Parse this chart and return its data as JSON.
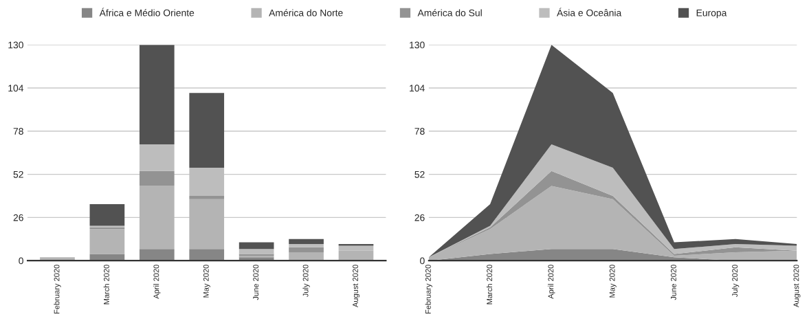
{
  "chart_data": [
    {
      "type": "bar",
      "stacked": true,
      "categories": [
        "February 2020",
        "March 2020",
        "April 2020",
        "May 2020",
        "June 2020",
        "July 2020",
        "August 2020"
      ],
      "ylim": [
        0,
        130
      ],
      "yticks": [
        0,
        26,
        52,
        78,
        104,
        130
      ],
      "grid": "y",
      "legend": "top",
      "series": [
        {
          "name": "África e Médio Oriente",
          "color": "#868686",
          "values": [
            0,
            4,
            7,
            7,
            2,
            0,
            0
          ]
        },
        {
          "name": "América do Norte",
          "color": "#b4b4b4",
          "values": [
            2,
            15,
            38,
            30,
            1,
            5,
            6
          ]
        },
        {
          "name": "América do Sul",
          "color": "#939393",
          "values": [
            0,
            1,
            9,
            2,
            1,
            3,
            0
          ]
        },
        {
          "name": "Ásia e Oceânia",
          "color": "#bdbdbd",
          "values": [
            0,
            1,
            16,
            17,
            3,
            2,
            3
          ]
        },
        {
          "name": "Europa",
          "color": "#525252",
          "values": [
            0,
            13,
            60,
            45,
            4,
            3,
            1
          ]
        }
      ]
    },
    {
      "type": "area",
      "stacked": true,
      "categories": [
        "February 2020",
        "March 2020",
        "April 2020",
        "May 2020",
        "June 2020",
        "July 2020",
        "August 2020"
      ],
      "ylim": [
        0,
        130
      ],
      "yticks": [
        0,
        26,
        52,
        78,
        104,
        130
      ],
      "grid": "y",
      "series": [
        {
          "color": "#868686",
          "values": [
            0,
            4,
            7,
            7,
            2,
            0,
            0
          ]
        },
        {
          "color": "#b4b4b4",
          "values": [
            2,
            15,
            38,
            30,
            1,
            5,
            6
          ]
        },
        {
          "color": "#939393",
          "values": [
            0,
            1,
            9,
            2,
            1,
            3,
            0
          ]
        },
        {
          "color": "#bdbdbd",
          "values": [
            0,
            1,
            16,
            17,
            3,
            2,
            3
          ]
        },
        {
          "color": "#525252",
          "values": [
            0,
            13,
            60,
            45,
            4,
            3,
            1
          ]
        }
      ]
    }
  ]
}
